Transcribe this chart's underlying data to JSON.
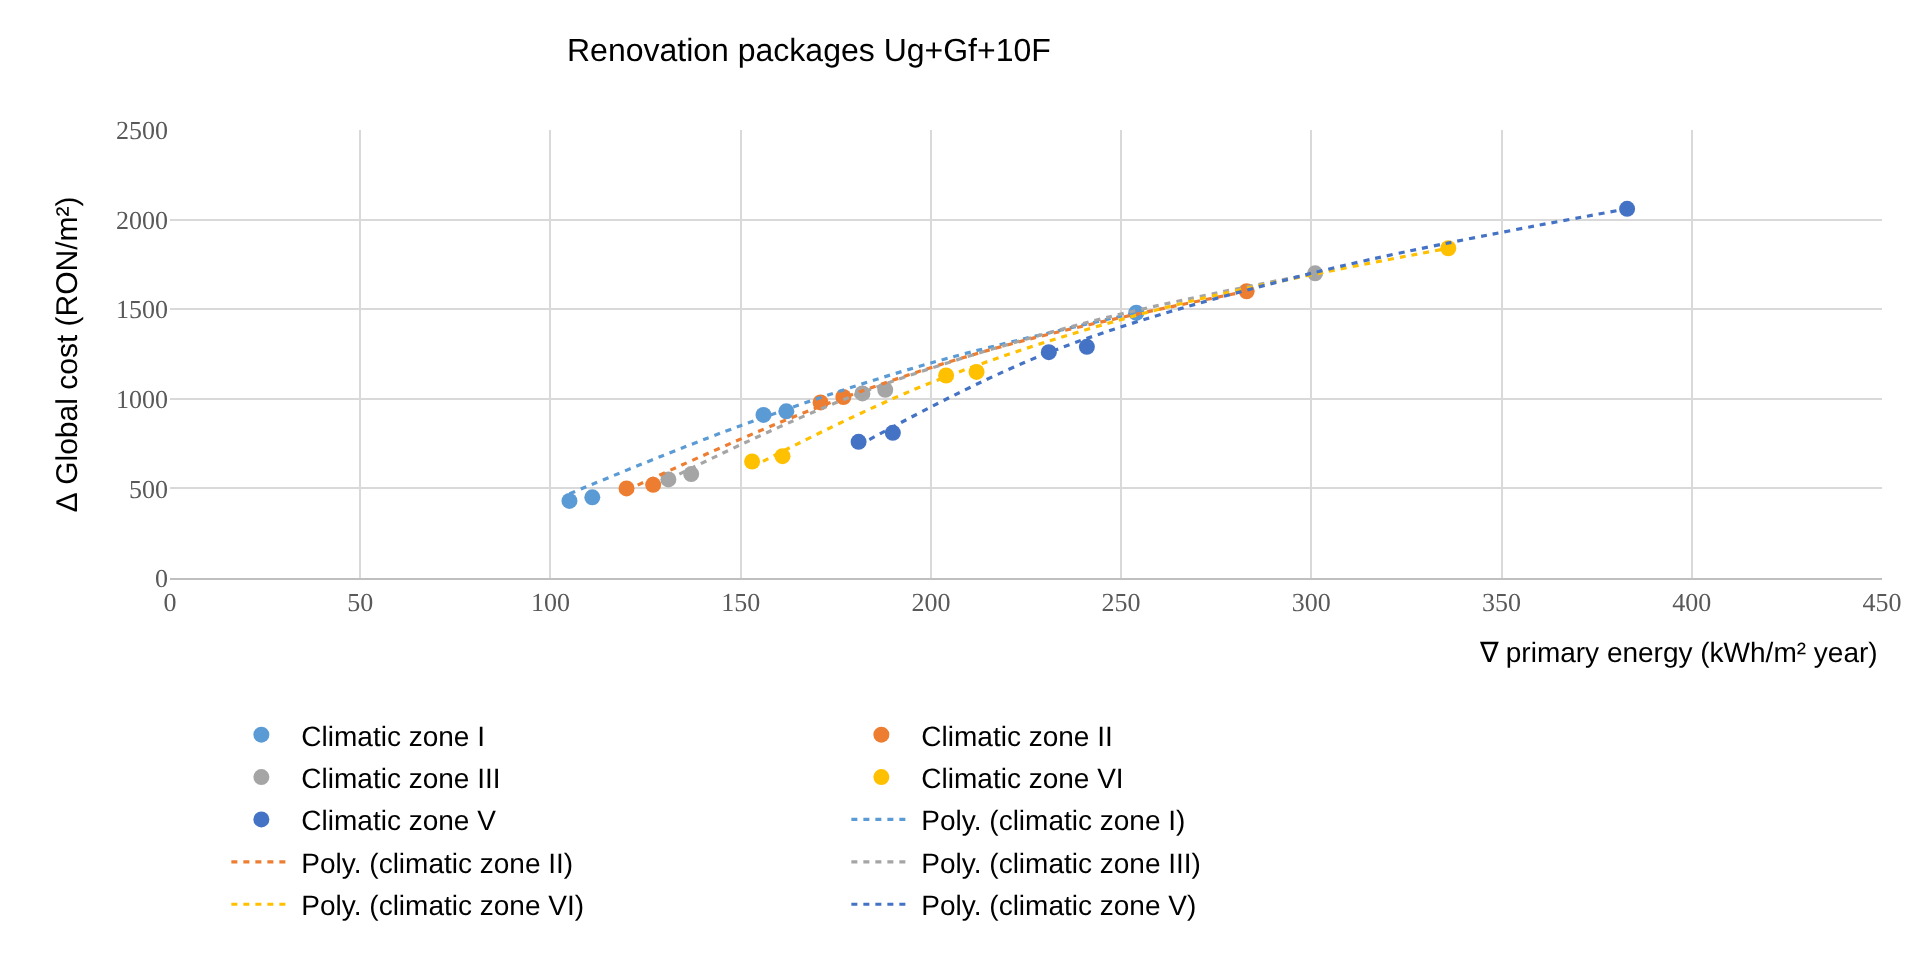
{
  "chart_data": {
    "type": "scatter",
    "title": "Renovation packages Ug+Gf+10F",
    "xlabel": "∇ primary energy (kWh/m² year)",
    "ylabel": "∆ Global cost (RON/m²)",
    "xlim": [
      0,
      450
    ],
    "xticks": [
      0,
      50,
      100,
      150,
      200,
      250,
      300,
      350,
      400,
      450
    ],
    "ylim": [
      0,
      2500
    ],
    "yticks": [
      0,
      500,
      1000,
      1500,
      2000,
      2500
    ],
    "grid": true,
    "legend": "bottom",
    "series": [
      {
        "name": "Climatic zone I",
        "marker": "circle",
        "color": "#5b9bd5",
        "x": [
          105,
          111,
          156,
          162,
          254
        ],
        "values": [
          430,
          450,
          910,
          930,
          1480
        ]
      },
      {
        "name": "Climatic zone II",
        "marker": "circle",
        "color": "#ed7d31",
        "x": [
          120,
          127,
          171,
          177,
          283
        ],
        "values": [
          500,
          520,
          980,
          1010,
          1600
        ]
      },
      {
        "name": "Climatic zone III",
        "marker": "circle",
        "color": "#a5a5a5",
        "x": [
          131,
          137,
          182,
          188,
          301
        ],
        "values": [
          550,
          580,
          1030,
          1050,
          1700
        ]
      },
      {
        "name": "Climatic zone VI",
        "marker": "circle",
        "color": "#ffc000",
        "x": [
          153,
          161,
          204,
          212,
          336
        ],
        "values": [
          650,
          680,
          1130,
          1150,
          1840
        ]
      },
      {
        "name": "Climatic zone V",
        "marker": "circle",
        "color": "#4472c4",
        "x": [
          181,
          190,
          231,
          241,
          383
        ],
        "values": [
          760,
          810,
          1260,
          1290,
          2060
        ]
      },
      {
        "name": "Poly. (climatic zone I)",
        "type": "line",
        "marker": "none",
        "line_style": "dotted",
        "color": "#5b9bd5",
        "x": [
          105,
          150,
          200,
          254
        ],
        "values": [
          470,
          850,
          1200,
          1480
        ]
      },
      {
        "name": "Poly. (climatic zone II)",
        "type": "line",
        "marker": "none",
        "line_style": "dotted",
        "color": "#ed7d31",
        "x": [
          120,
          170,
          220,
          283
        ],
        "values": [
          490,
          950,
          1300,
          1600
        ]
      },
      {
        "name": "Poly. (climatic zone III)",
        "type": "line",
        "marker": "none",
        "line_style": "dotted",
        "color": "#a5a5a5",
        "x": [
          131,
          180,
          240,
          301
        ],
        "values": [
          550,
          1020,
          1420,
          1700
        ]
      },
      {
        "name": "Poly. (climatic zone VI)",
        "type": "line",
        "marker": "none",
        "line_style": "dotted",
        "color": "#ffc000",
        "x": [
          153,
          200,
          260,
          336
        ],
        "values": [
          620,
          1090,
          1500,
          1840
        ]
      },
      {
        "name": "Poly. (climatic zone V)",
        "type": "line",
        "marker": "none",
        "line_style": "dotted",
        "color": "#4472c4",
        "x": [
          181,
          230,
          300,
          383
        ],
        "values": [
          740,
          1250,
          1700,
          2060
        ]
      }
    ]
  }
}
